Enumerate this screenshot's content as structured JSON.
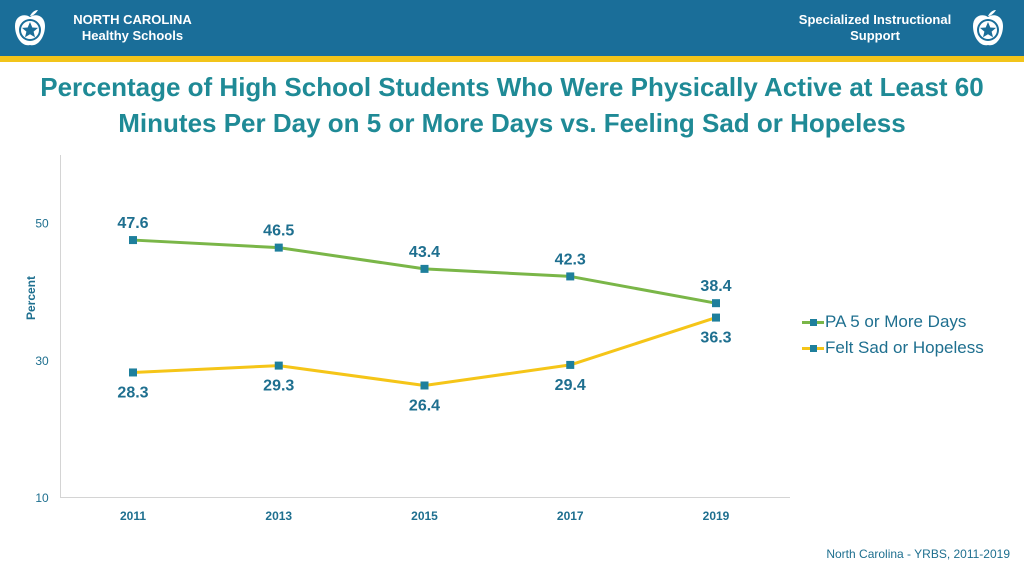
{
  "header": {
    "left_line1": "NORTH CAROLINA",
    "left_line2": "Healthy Schools",
    "right_line1": "Specialized Instructional",
    "right_line2": "Support",
    "logo_icon": "apple-star-icon"
  },
  "colors": {
    "banner": "#1a6e99",
    "stripe": "#f2c41a",
    "title": "#1f8a96",
    "pa_line": "#7ab648",
    "sad_line": "#f5c518",
    "marker": "#1e7f9c",
    "label": "#1e6f8f"
  },
  "chart_data": {
    "type": "line",
    "title": "Percentage of High School Students Who Were Physically Active at Least 60 Minutes Per Day on 5 or More Days vs. Feeling Sad or Hopeless",
    "xlabel": "",
    "ylabel": "Percent",
    "categories": [
      "2011",
      "2013",
      "2015",
      "2017",
      "2019"
    ],
    "ylim": [
      10,
      60
    ],
    "yticks": [
      10,
      30,
      50
    ],
    "grid": false,
    "legend_position": "right",
    "series": [
      {
        "name": "PA 5 or More Days",
        "values": [
          47.6,
          46.5,
          43.4,
          42.3,
          38.4
        ],
        "labels": [
          "47.6",
          "46.5",
          "43.4",
          "42.3",
          "38.4"
        ],
        "label_position": "above"
      },
      {
        "name": "Felt Sad or Hopeless",
        "values": [
          28.3,
          29.3,
          26.4,
          29.4,
          36.3
        ],
        "labels": [
          "28.3",
          "29.3",
          "26.4",
          "29.4",
          "36.3"
        ],
        "label_position": "below"
      }
    ]
  },
  "footer": {
    "source": "North Carolina - YRBS, 2011-2019"
  }
}
